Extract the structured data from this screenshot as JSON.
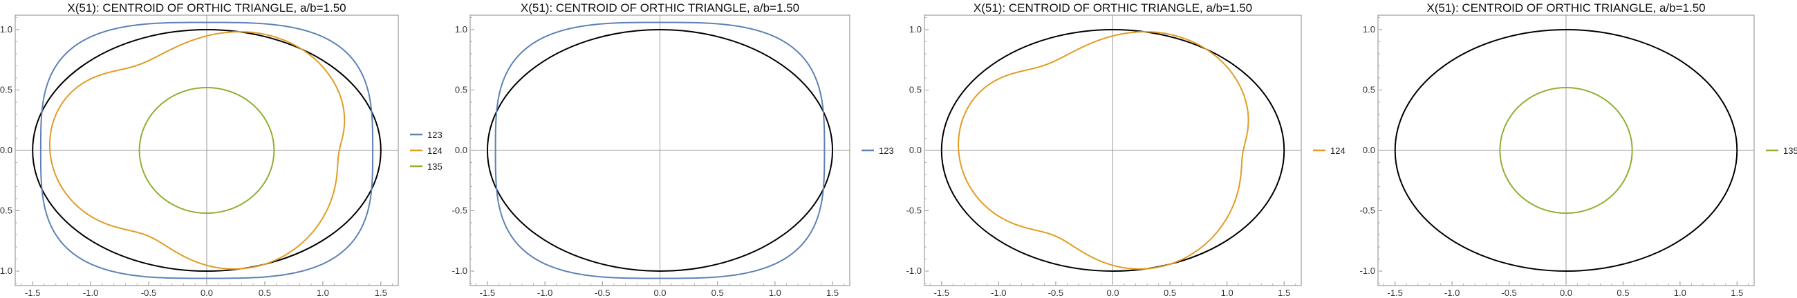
{
  "chart_data": [
    {
      "type": "line",
      "title": "X(51): CENTROID OF ORTHIC TRIANGLE, a/b=1.50",
      "xlim": [
        -1.65,
        1.65
      ],
      "ylim": [
        -1.12,
        1.12
      ],
      "xticks": [
        "-1.5",
        "-1.0",
        "-0.5",
        "0.0",
        "0.5",
        "1.0",
        "1.5"
      ],
      "yticks": [
        "1.0",
        "0.5",
        "0.0",
        "-0.5",
        "-1.0"
      ],
      "grid": false,
      "legend_position": "right",
      "reference_ellipse": {
        "a": 1.5,
        "b": 1.0,
        "color": "#000000"
      },
      "series": [
        {
          "name": "123",
          "color": "#5E81B5",
          "curve": "superellipse",
          "a": 1.43,
          "b": 1.06,
          "n": 3.2
        },
        {
          "name": "124",
          "color": "#E19C24",
          "curve": "looped",
          "r": 0.82,
          "k": 3,
          "loop": 0.11
        },
        {
          "name": "135",
          "color": "#8FB032",
          "curve": "ellipse",
          "a": 0.58,
          "b": 0.52
        }
      ]
    },
    {
      "type": "line",
      "title": "X(51): CENTROID OF ORTHIC TRIANGLE, a/b=1.50",
      "xlim": [
        -1.65,
        1.65
      ],
      "ylim": [
        -1.12,
        1.12
      ],
      "xticks": [
        "-1.5",
        "-1.0",
        "-0.5",
        "0.0",
        "0.5",
        "1.0",
        "1.5"
      ],
      "yticks": [
        "1.0",
        "0.5",
        "0.0",
        "-0.5",
        "-1.0"
      ],
      "grid": false,
      "legend_position": "right",
      "reference_ellipse": {
        "a": 1.5,
        "b": 1.0,
        "color": "#000000"
      },
      "series": [
        {
          "name": "123",
          "color": "#5E81B5",
          "curve": "superellipse",
          "a": 1.43,
          "b": 1.06,
          "n": 3.2
        }
      ]
    },
    {
      "type": "line",
      "title": "X(51): CENTROID OF ORTHIC TRIANGLE, a/b=1.50",
      "xlim": [
        -1.65,
        1.65
      ],
      "ylim": [
        -1.12,
        1.12
      ],
      "xticks": [
        "-1.5",
        "-1.0",
        "-0.5",
        "0.0",
        "0.5",
        "1.0",
        "1.5"
      ],
      "yticks": [
        "1.0",
        "0.5",
        "0.0",
        "-0.5",
        "-1.0"
      ],
      "grid": false,
      "legend_position": "right",
      "reference_ellipse": {
        "a": 1.5,
        "b": 1.0,
        "color": "#000000"
      },
      "series": [
        {
          "name": "124",
          "color": "#E19C24",
          "curve": "looped",
          "r": 0.82,
          "k": 3,
          "loop": 0.11
        }
      ]
    },
    {
      "type": "line",
      "title": "X(51): CENTROID OF ORTHIC TRIANGLE, a/b=1.50",
      "xlim": [
        -1.65,
        1.65
      ],
      "ylim": [
        -1.12,
        1.12
      ],
      "xticks": [
        "-1.5",
        "-1.0",
        "-0.5",
        "0.0",
        "0.5",
        "1.0",
        "1.5"
      ],
      "yticks": [
        "1.0",
        "0.5",
        "0.0",
        "-0.5",
        "-1.0"
      ],
      "grid": false,
      "legend_position": "right",
      "reference_ellipse": {
        "a": 1.5,
        "b": 1.0,
        "color": "#000000"
      },
      "series": [
        {
          "name": "135",
          "color": "#8FB032",
          "curve": "ellipse",
          "a": 0.58,
          "b": 0.52
        }
      ]
    }
  ]
}
